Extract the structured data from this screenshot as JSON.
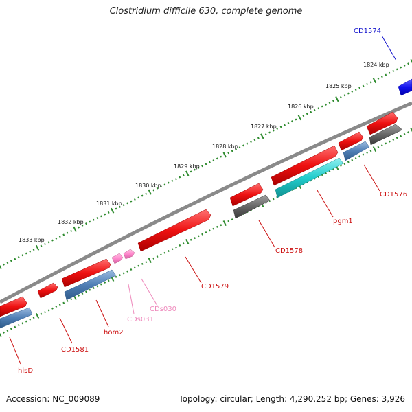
{
  "title": "Clostridium difficile 630, complete genome",
  "footer": {
    "accession": "Accession: NC_009089",
    "summary": "Topology: circular; Length: 4,290,252 bp; Genes: 3,926"
  },
  "colors": {
    "backbone": "#8a8a8a",
    "ticks": "#2e8b2e",
    "cds_forward": "#ee1111",
    "cds_reverse": "#4f7fb5",
    "cds_grey": "#666666",
    "cds_cyan": "#22cccc",
    "cds_blue": "#1111cc",
    "cds_pink": "#ff88cc"
  },
  "scale_labels": [
    "1824 kbp",
    "1825 kbp",
    "1826 kbp",
    "1827 kbp",
    "1828 kbp",
    "1829 kbp",
    "1830 kbp",
    "1831 kbp",
    "1832 kbp",
    "1833 kbp"
  ],
  "genes": [
    {
      "label": "CD1574",
      "color": "#1111cc"
    },
    {
      "label": "CD1576",
      "color": "#cc1111"
    },
    {
      "label": "CD1578",
      "color": "#cc1111"
    },
    {
      "label": "pgm1",
      "color": "#cc1111"
    },
    {
      "label": "CD1579",
      "color": "#cc1111"
    },
    {
      "label": "CDs030",
      "color": "#ee88bb"
    },
    {
      "label": "CDs031",
      "color": "#ee88bb"
    },
    {
      "label": "hom2",
      "color": "#cc1111"
    },
    {
      "label": "CD1581",
      "color": "#cc1111"
    },
    {
      "label": "hisD",
      "color": "#cc1111"
    }
  ]
}
